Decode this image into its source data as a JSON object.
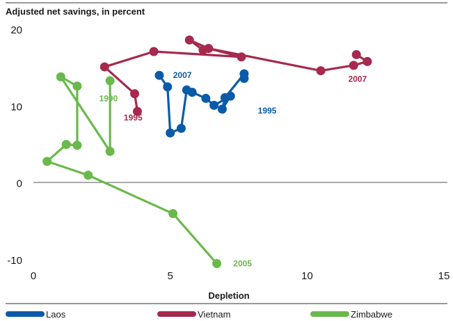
{
  "chart_data": {
    "type": "scatter",
    "title": "Adjusted net savings, in percent",
    "xlabel": "Depletion",
    "ylabel": "",
    "xlim": [
      0,
      15
    ],
    "ylim": [
      -10,
      20
    ],
    "x_ticks": [
      "0",
      "5",
      "10",
      "15"
    ],
    "y_ticks": [
      "20",
      "10",
      "0",
      "-10"
    ],
    "grid": false,
    "legend_position": "bottom",
    "series": [
      {
        "name": "Laos",
        "color": "#0a5ba8",
        "points": [
          [
            7.7,
            13.6
          ],
          [
            7.7,
            14.2
          ],
          [
            7.0,
            11.1
          ],
          [
            6.9,
            9.6
          ],
          [
            7.2,
            11.3
          ],
          [
            6.6,
            10.1
          ],
          [
            6.3,
            11.0
          ],
          [
            5.8,
            11.8
          ],
          [
            5.6,
            12.1
          ],
          [
            5.4,
            7.1
          ],
          [
            5.0,
            6.5
          ],
          [
            4.9,
            12.5
          ],
          [
            4.6,
            14.0
          ]
        ],
        "annotations": [
          {
            "text": "1995",
            "at": [
              8.0,
              9.4
            ]
          },
          {
            "text": "2007",
            "at": [
              4.9,
              14.0
            ]
          }
        ]
      },
      {
        "name": "Vietnam",
        "color": "#a6294e",
        "points": [
          [
            3.8,
            9.3
          ],
          [
            3.7,
            11.6
          ],
          [
            2.6,
            15.1
          ],
          [
            4.4,
            17.1
          ],
          [
            7.6,
            16.4
          ],
          [
            6.4,
            17.5
          ],
          [
            6.2,
            17.3
          ],
          [
            5.7,
            18.6
          ],
          [
            6.4,
            17.5
          ],
          [
            10.5,
            14.6
          ],
          [
            11.7,
            15.3
          ],
          [
            12.2,
            15.8
          ],
          [
            11.8,
            16.7
          ],
          [
            12.2,
            15.8
          ]
        ],
        "annotations": [
          {
            "text": "1995",
            "at": [
              3.1,
              8.5
            ]
          },
          {
            "text": "2007",
            "at": [
              11.3,
              13.5
            ]
          }
        ]
      },
      {
        "name": "Zimbabwe",
        "color": "#6ab94b",
        "points": [
          [
            2.8,
            13.3
          ],
          [
            2.8,
            4.1
          ],
          [
            1.0,
            13.8
          ],
          [
            1.6,
            12.6
          ],
          [
            1.6,
            4.9
          ],
          [
            1.2,
            5.0
          ],
          [
            0.5,
            2.8
          ],
          [
            2.0,
            1.0
          ],
          [
            5.1,
            -4.0
          ],
          [
            6.7,
            -10.5
          ]
        ],
        "annotations": [
          {
            "text": "1990",
            "at": [
              2.2,
              11.0
            ]
          },
          {
            "text": "2005",
            "at": [
              7.1,
              -10.5
            ]
          }
        ]
      }
    ]
  }
}
